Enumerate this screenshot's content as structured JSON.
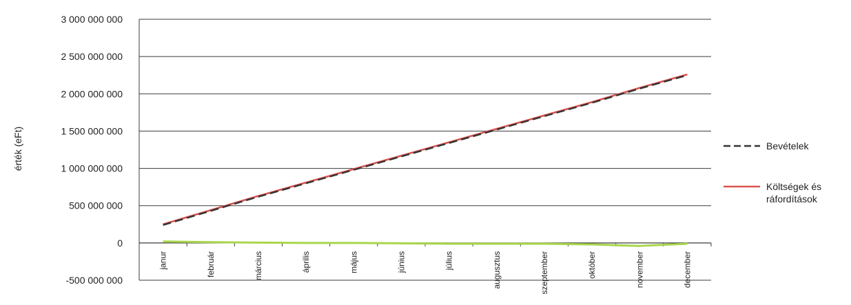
{
  "chart_data": {
    "type": "line",
    "ylabel": "érték (eFt)",
    "xlabel": "",
    "categories": [
      "janur",
      "február",
      "március",
      "április",
      "május",
      "június",
      "július",
      "augusztus",
      "szeptember",
      "október",
      "november",
      "december"
    ],
    "ylim": [
      -500000000,
      3000000000
    ],
    "y_ticks": [
      3000000000,
      2500000000,
      2000000000,
      1500000000,
      1000000000,
      500000000,
      0,
      -500000000
    ],
    "y_tick_labels": [
      "3 000 000 000",
      "2 500 000 000",
      "2 000 000 000",
      "1 500 000 000",
      "1 000 000 000",
      "500 000 000",
      "0",
      "-500 000 000"
    ],
    "grid": true,
    "legend_position": "right",
    "series": [
      {
        "name": "Bevételek",
        "color": "#333333",
        "style": "dashed",
        "values": [
          240000000,
          430000000,
          620000000,
          800000000,
          980000000,
          1160000000,
          1340000000,
          1520000000,
          1700000000,
          1880000000,
          2070000000,
          2250000000
        ]
      },
      {
        "name": "Költségek és ráfordítások",
        "name_lines": [
          "Költségek és",
          "ráfordítások"
        ],
        "color": "#d9534f",
        "style": "solid",
        "values": [
          250000000,
          440000000,
          630000000,
          810000000,
          990000000,
          1170000000,
          1350000000,
          1530000000,
          1710000000,
          1890000000,
          2080000000,
          2260000000
        ]
      },
      {
        "name": "",
        "color": "#a8d64a",
        "style": "solid",
        "values": [
          20000000,
          10000000,
          5000000,
          0,
          0,
          -5000000,
          -10000000,
          -10000000,
          -10000000,
          -20000000,
          -40000000,
          -10000000
        ]
      }
    ]
  }
}
